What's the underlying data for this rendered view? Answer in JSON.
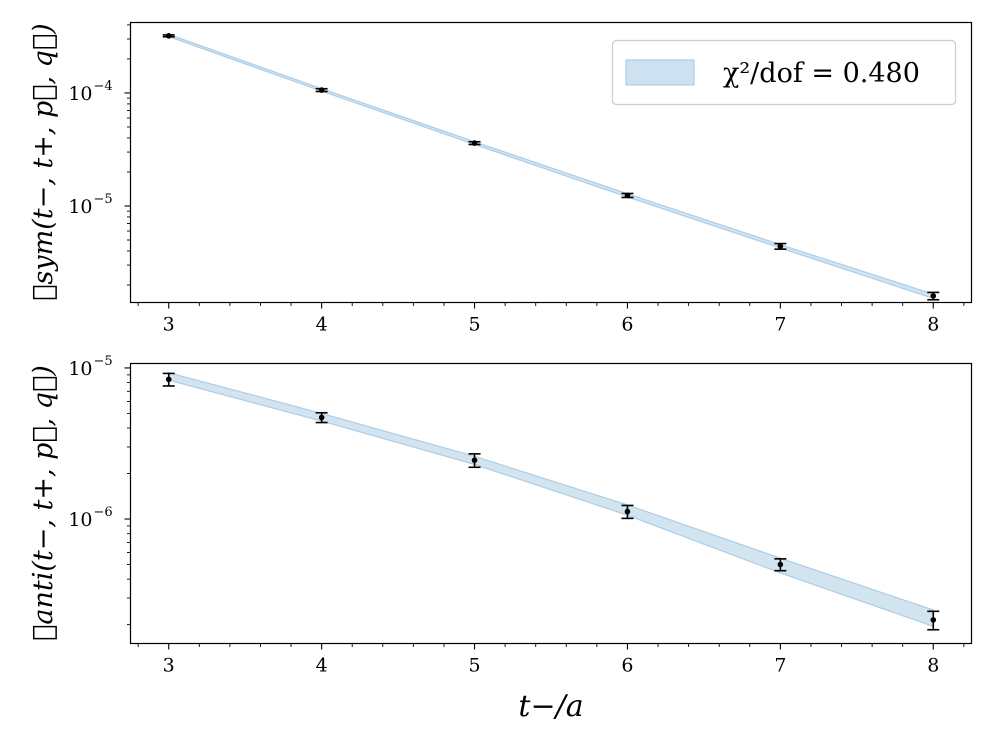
{
  "chart_data": [
    {
      "type": "line",
      "panel": "top",
      "ylabel": "𝓡sym(t−, t+, p⃗, q⃗)",
      "yscale": "log",
      "ylim": [
        1.4e-06,
        0.00042
      ],
      "xlim": [
        2.75,
        8.25
      ],
      "xticks": [
        3,
        4,
        5,
        6,
        7,
        8
      ],
      "yticks": [
        {
          "value": 0.0001,
          "base": "10",
          "exp": "−4"
        },
        {
          "value": 1e-05,
          "base": "10",
          "exp": "−5"
        }
      ],
      "points": [
        {
          "x": 3,
          "y": 0.00032,
          "yerr": 6e-06
        },
        {
          "x": 4,
          "y": 0.000106,
          "yerr": 3e-06
        },
        {
          "x": 5,
          "y": 3.6e-05,
          "yerr": 1e-06
        },
        {
          "x": 6,
          "y": 1.24e-05,
          "yerr": 5e-07
        },
        {
          "x": 7,
          "y": 4.4e-06,
          "yerr": 2.5e-07
        },
        {
          "x": 8,
          "y": 1.6e-06,
          "yerr": 1.2e-07
        }
      ],
      "band": {
        "color": "#aecde6",
        "x": [
          3,
          4,
          5,
          6,
          7,
          8
        ],
        "upper": [
          0.00033,
          0.000109,
          3.7e-05,
          1.28e-05,
          4.55e-06,
          1.66e-06
        ],
        "lower": [
          0.000315,
          0.000104,
          3.5e-05,
          1.2e-05,
          4.25e-06,
          1.52e-06
        ]
      },
      "legend": {
        "label": "χ²/dof = 0.480",
        "position": "top-right"
      }
    },
    {
      "type": "line",
      "panel": "bottom",
      "ylabel": "𝓡anti(t−, t+, p⃗, q⃗)",
      "xlabel": "t−/a",
      "yscale": "log",
      "ylim": [
        1.5e-07,
        1.07e-05
      ],
      "xlim": [
        2.75,
        8.25
      ],
      "xticks": [
        3,
        4,
        5,
        6,
        7,
        8
      ],
      "yticks": [
        {
          "value": 1e-05,
          "base": "10",
          "exp": "−5"
        },
        {
          "value": 1e-06,
          "base": "10",
          "exp": "−6"
        }
      ],
      "points": [
        {
          "x": 3,
          "y": 8.4e-06,
          "yerr": 8e-07
        },
        {
          "x": 4,
          "y": 4.7e-06,
          "yerr": 3.5e-07
        },
        {
          "x": 5,
          "y": 2.45e-06,
          "yerr": 2.5e-07
        },
        {
          "x": 6,
          "y": 1.12e-06,
          "yerr": 1.1e-07
        },
        {
          "x": 7,
          "y": 5e-07,
          "yerr": 4.5e-08
        },
        {
          "x": 8,
          "y": 2.15e-07,
          "yerr": 3e-08
        }
      ],
      "band": {
        "color": "#aecde6",
        "x": [
          3,
          4,
          5,
          6,
          7,
          8
        ],
        "upper": [
          9.3e-06,
          5e-06,
          2.6e-06,
          1.24e-06,
          5.5e-07,
          2.5e-07
        ],
        "lower": [
          8.3e-06,
          4.45e-06,
          2.3e-06,
          1.06e-06,
          4.4e-07,
          1.95e-07
        ]
      }
    }
  ]
}
